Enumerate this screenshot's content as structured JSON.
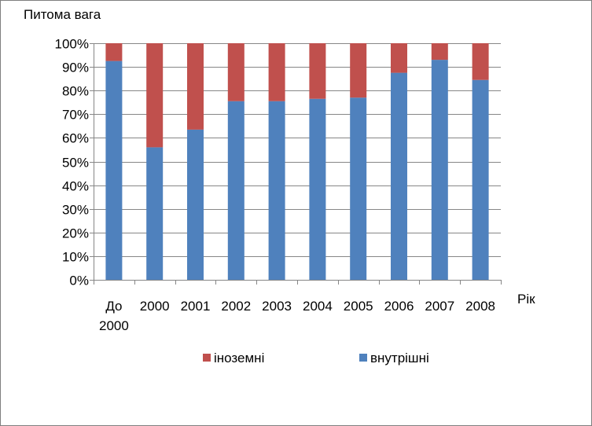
{
  "chart_data": {
    "type": "bar",
    "stacked": true,
    "percent": true,
    "ylabel": "Питома вага",
    "xlabel": "Рік",
    "categories": [
      [
        "До",
        "2000"
      ],
      [
        "2000"
      ],
      [
        "2001"
      ],
      [
        "2002"
      ],
      [
        "2003"
      ],
      [
        "2004"
      ],
      [
        "2005"
      ],
      [
        "2006"
      ],
      [
        "2007"
      ],
      [
        "2008"
      ]
    ],
    "series": [
      {
        "name": "внутрішні",
        "color": "#4f81bd",
        "values": [
          92.5,
          56,
          63.5,
          75.5,
          75.5,
          76.5,
          77,
          87.5,
          93,
          84.5
        ]
      },
      {
        "name": "іноземні",
        "color": "#c0504d",
        "values": [
          7.5,
          44,
          36.5,
          24.5,
          24.5,
          23.5,
          23,
          12.5,
          7,
          15.5
        ]
      }
    ],
    "ylim": [
      0,
      100
    ],
    "yticks": [
      "0%",
      "10%",
      "20%",
      "30%",
      "40%",
      "50%",
      "60%",
      "70%",
      "80%",
      "90%",
      "100%"
    ],
    "grid": true,
    "legend": {
      "position": "bottom",
      "order": [
        "іноземні",
        "внутрішні"
      ]
    }
  }
}
